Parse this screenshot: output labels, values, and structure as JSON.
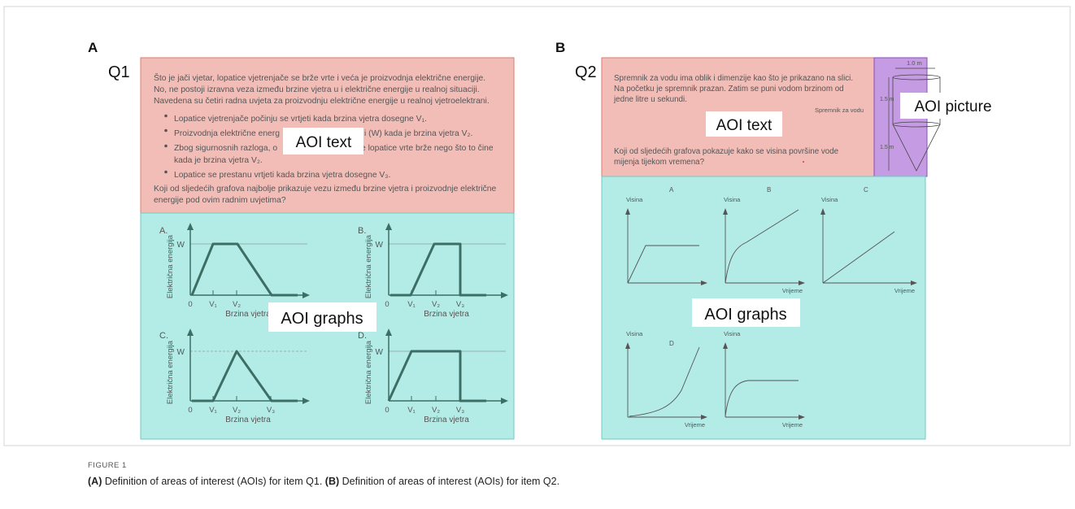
{
  "panel_a": {
    "label": "A",
    "item": "Q1",
    "intro_lines": [
      "Što je jači vjetar, lopatice vjetrenjače se brže vrte i veća je proizvodnja električne energije.",
      "No, ne postoji izravna veza između brzine vjetra u i električne energije u realnoj situaciji.",
      "Navedena su četiri radna uvjeta za proizvodnju električne energije u realnoj vjetroelektrani."
    ],
    "bullets": [
      [
        "Lopatice vjetrenjače počinju se vrtjeti kada brzina vjetra dosegne V₁."
      ],
      [
        "Proizvodnja električne energ",
        "i (W) kada je brzina vjetra V₂."
      ],
      [
        "Zbog sigurnosnih razloga, o",
        "e lopatice vrte brže nego što to čine",
        "kada je brzina vjetra V₂."
      ],
      [
        "Lopatice se prestanu vrtjeti kada brzina vjetra dosegne V₃."
      ]
    ],
    "question_lines": [
      "Koji od sljedećih grafova najbolje prikazuje vezu između brzine vjetra i proizvodnje električne",
      "energije pod ovim radnim uvjetima?"
    ],
    "aoi_text": "AOI text",
    "aoi_graphs": "AOI graphs",
    "graphs": [
      {
        "label": "A.",
        "w": "W",
        "y_axis": "Električna energija",
        "x_axis": "Brzina vjetra",
        "ticks": [
          "0",
          "V₁",
          "V₂"
        ]
      },
      {
        "label": "B.",
        "w": "W",
        "y_axis": "Električna energija",
        "x_axis": "Brzina vjetra",
        "ticks": [
          "0",
          "V₁",
          "V₂",
          "V₃"
        ]
      },
      {
        "label": "C.",
        "w": "W",
        "y_axis": "Električna energija",
        "x_axis": "Brzina vjetra",
        "ticks": [
          "0",
          "V₁",
          "V₂",
          "V₃"
        ]
      },
      {
        "label": "D.",
        "w": "W",
        "y_axis": "Električna energija",
        "x_axis": "Brzina vjetra",
        "ticks": [
          "0",
          "V₁",
          "V₂",
          "V₃"
        ]
      }
    ]
  },
  "panel_b": {
    "label": "B",
    "item": "Q2",
    "intro_lines": [
      "Spremnik za vodu ima oblik i dimenzije kao što je prikazano na slici.",
      "Na početku je spremnik prazan. Zatim se puni vodom brzinom od",
      "jedne litre u sekundi."
    ],
    "picture_caption": "Spremnik za vodu",
    "question_lines": [
      "Koji od sljedećih grafova pokazuje kako se visina površine vode",
      "mijenja tijekom vremena?"
    ],
    "tank_labels": [
      "1.0 m",
      "1.5 m",
      "1.5 m"
    ],
    "aoi_text": "AOI text",
    "aoi_picture": "AOI picture",
    "aoi_graphs": "AOI graphs",
    "graphs": [
      {
        "label": "A",
        "y_axis": "Visina"
      },
      {
        "label": "B",
        "y_axis": "Visina",
        "x_axis": "Vrijeme"
      },
      {
        "label": "C",
        "y_axis": "Visina",
        "x_axis": "Vrijeme"
      },
      {
        "label": "D",
        "y_axis": "Visina",
        "x_axis": "Vrijeme"
      },
      {
        "y_axis": "Visina",
        "x_axis": "Vrijeme"
      }
    ]
  },
  "caption": {
    "figure": "FIGURE 1",
    "parts": [
      "(A)",
      " Definition of areas of interest (AOIs) for item Q1. ",
      "(B)",
      " Definition of areas of interest (AOIs) for item Q2."
    ]
  }
}
